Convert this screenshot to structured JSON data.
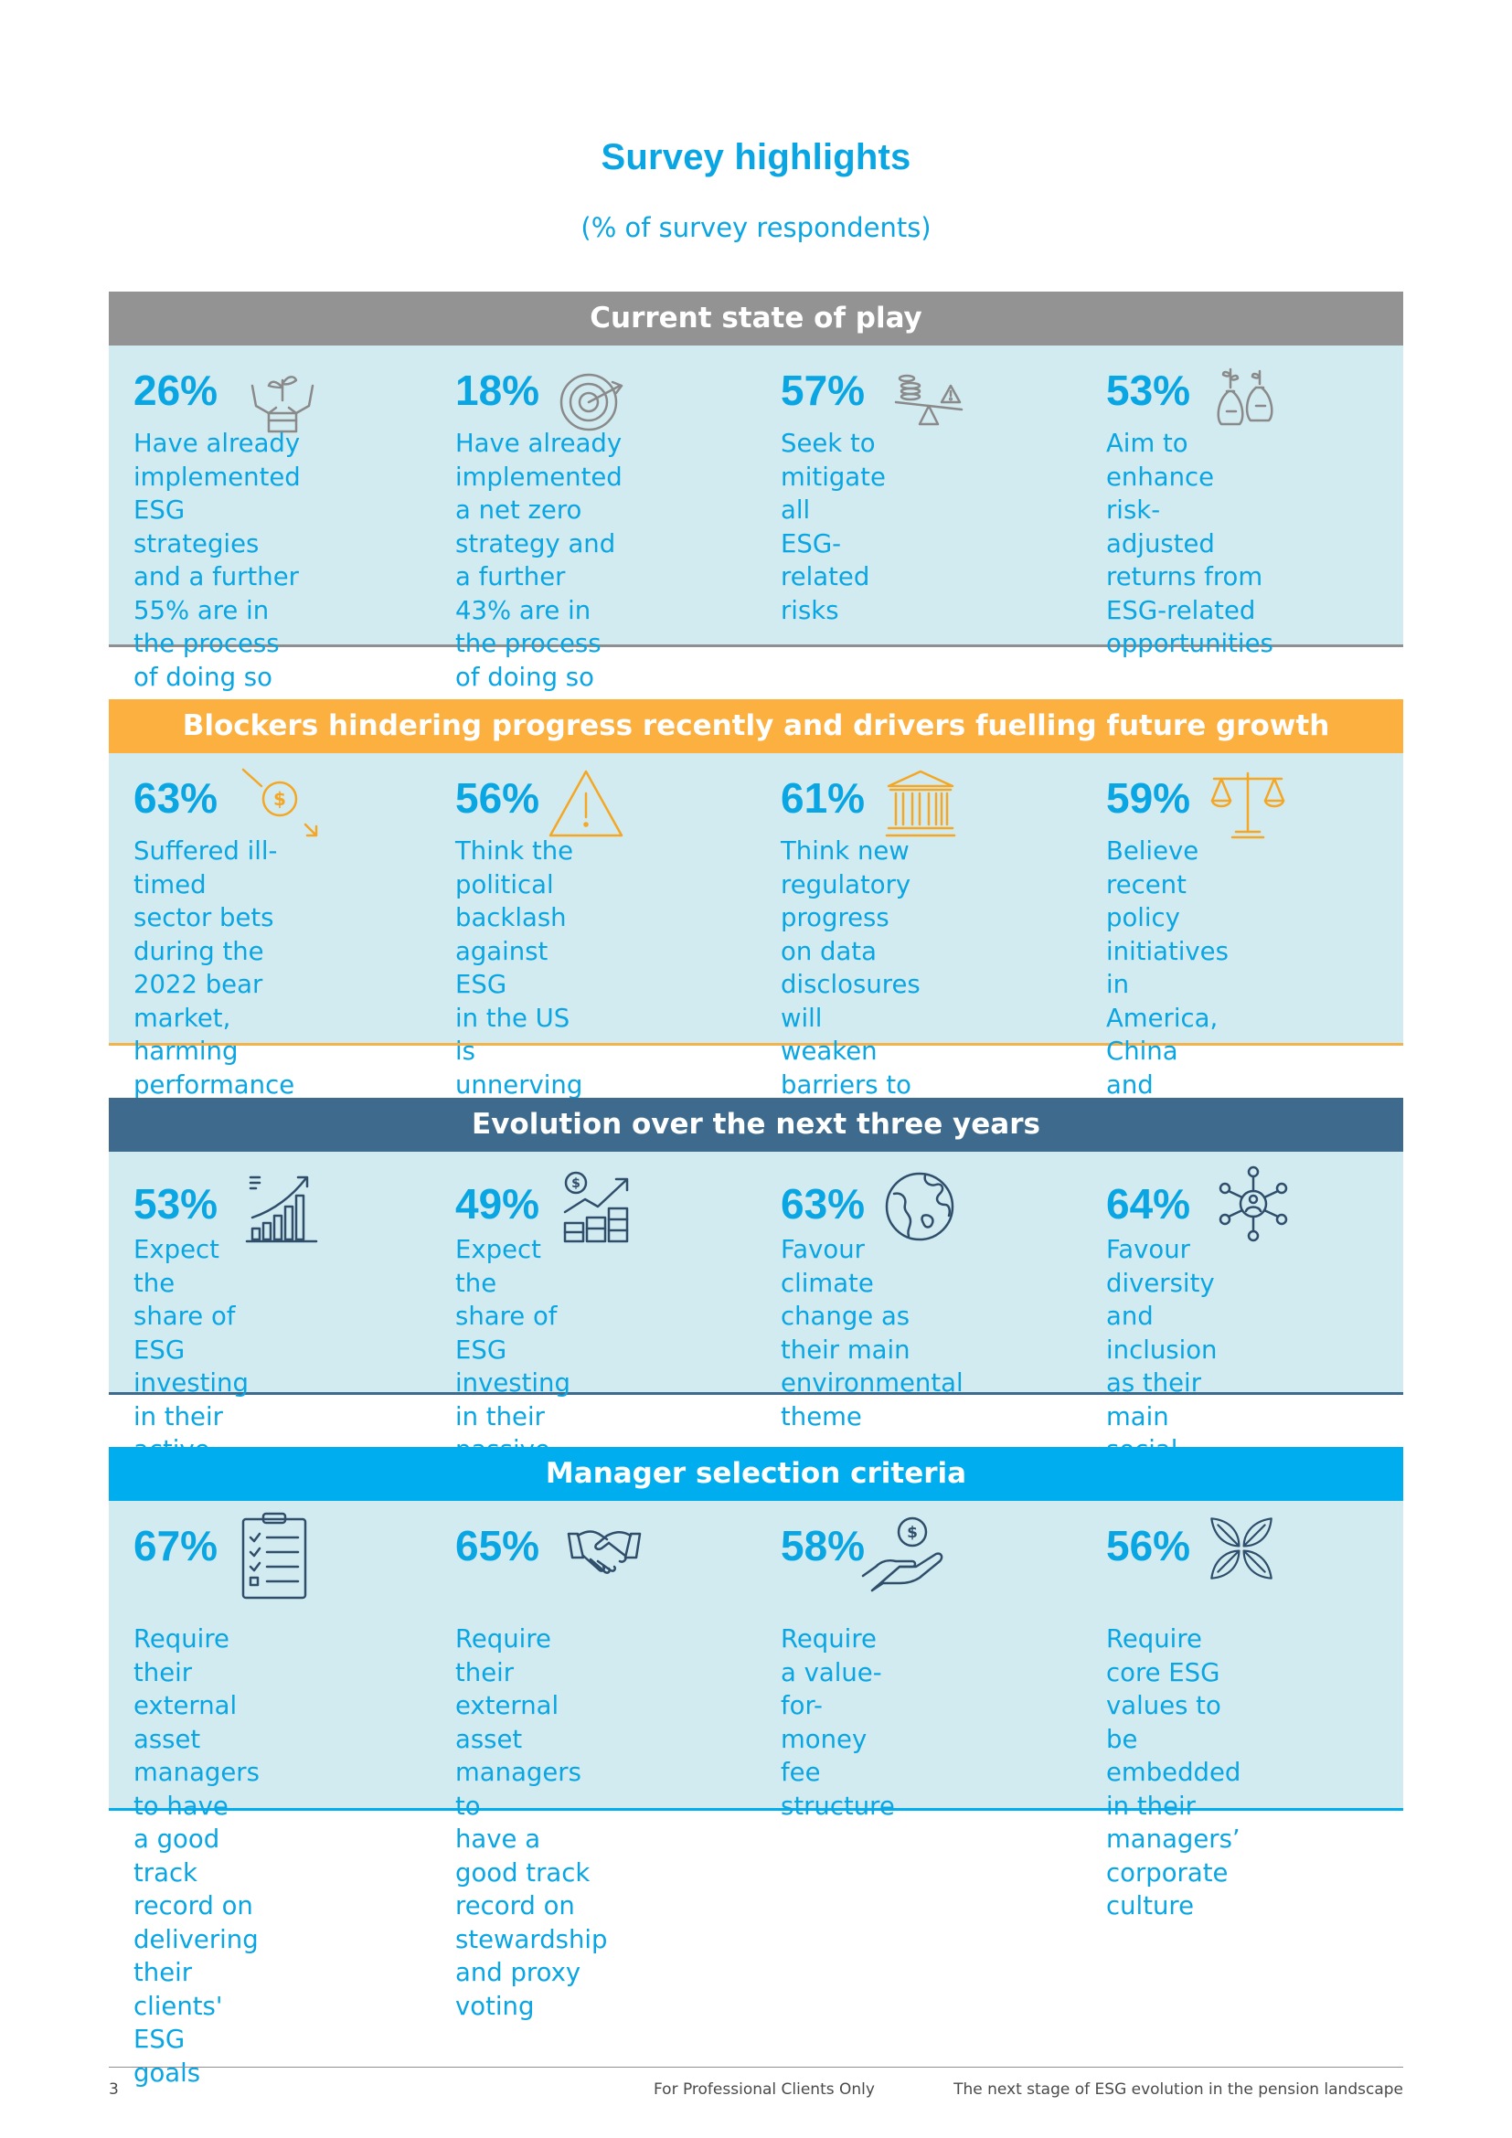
{
  "page": {
    "title": "Survey highlights",
    "subtitle": "(% of survey respondents)"
  },
  "colors": {
    "accent": "#0aa6e3",
    "panel": "#d2ebf0",
    "gray_header": "#939393",
    "orange_header": "#fbb040",
    "navy_header": "#3e6b8d",
    "blue_header": "#00aeef"
  },
  "sections": [
    {
      "heading": "Current state of play",
      "items": [
        {
          "pct": "26%",
          "icon": "hands-holding-plant-icon",
          "text": "Have already\nimplemented ESG\nstrategies and a further\n55% are in the process\nof doing so"
        },
        {
          "pct": "18%",
          "icon": "target-arrow-icon",
          "text": "Have already\nimplemented a net zero\nstrategy and a further\n43% are in the process\nof doing so"
        },
        {
          "pct": "57%",
          "icon": "seesaw-coins-risk-icon",
          "text": "Seek to mitigate all\nESG-related risks"
        },
        {
          "pct": "53%",
          "icon": "money-bags-growth-icon",
          "text": "Aim to enhance risk-\nadjusted returns from\nESG-related\nopportunities"
        }
      ]
    },
    {
      "heading": "Blockers hindering progress recently and drivers fuelling future growth",
      "items": [
        {
          "pct": "63%",
          "icon": "declining-coin-icon",
          "text": "Suffered ill-timed\nsector bets during the\n2022 bear market,\nharming performance\nof ESG investments"
        },
        {
          "pct": "56%",
          "icon": "warning-triangle-icon",
          "text": "Think the political\nbacklash against ESG\nin the US is unnerving\npension investors"
        },
        {
          "pct": "61%",
          "icon": "bank-building-icon",
          "text": "Think new regulatory\nprogress on data\ndisclosures will weaken\nbarriers to growth in\nESG assets"
        },
        {
          "pct": "59%",
          "icon": "balance-scale-icon",
          "text": "Believe recent policy\ninitiatives in America,\nChina and Europe will\nspeed up the pricing in\nof ESG risks"
        }
      ]
    },
    {
      "heading": "Evolution over the next three years",
      "items": [
        {
          "pct": "53%",
          "icon": "rising-bar-chart-icon",
          "text": "Expect the share of\nESG investing in their\nactive portfolio to rise"
        },
        {
          "pct": "49%",
          "icon": "dollar-growth-chart-icon",
          "text": "Expect the share of ESG\ninvesting in their passive\nportfolio to rise"
        },
        {
          "pct": "63%",
          "icon": "globe-icon",
          "text": "Favour climate\nchange as their main\nenvironmental theme"
        },
        {
          "pct": "64%",
          "icon": "people-network-icon",
          "text": "Favour diversity and\ninclusion as their main\nsocial theme"
        }
      ]
    },
    {
      "heading": "Manager selection criteria",
      "items": [
        {
          "pct": "67%",
          "icon": "clipboard-checklist-icon",
          "text": "Require their external\nasset managers to have\na good track record on\ndelivering their clients'\nESG goals"
        },
        {
          "pct": "65%",
          "icon": "handshake-icon",
          "text": "Require their external\nasset managers to\nhave a good track\nrecord on stewardship\nand proxy voting"
        },
        {
          "pct": "58%",
          "icon": "hand-with-coin-icon",
          "text": "Require a value-for-\nmoney fee structure"
        },
        {
          "pct": "56%",
          "icon": "leaves-icon",
          "text": "Require core ESG\nvalues to be embedded\nin their managers’\ncorporate culture"
        }
      ]
    }
  ],
  "footer": {
    "page_number": "3",
    "notice": "For Professional Clients Only",
    "report_title": "The next stage of ESG evolution in the pension landscape"
  }
}
